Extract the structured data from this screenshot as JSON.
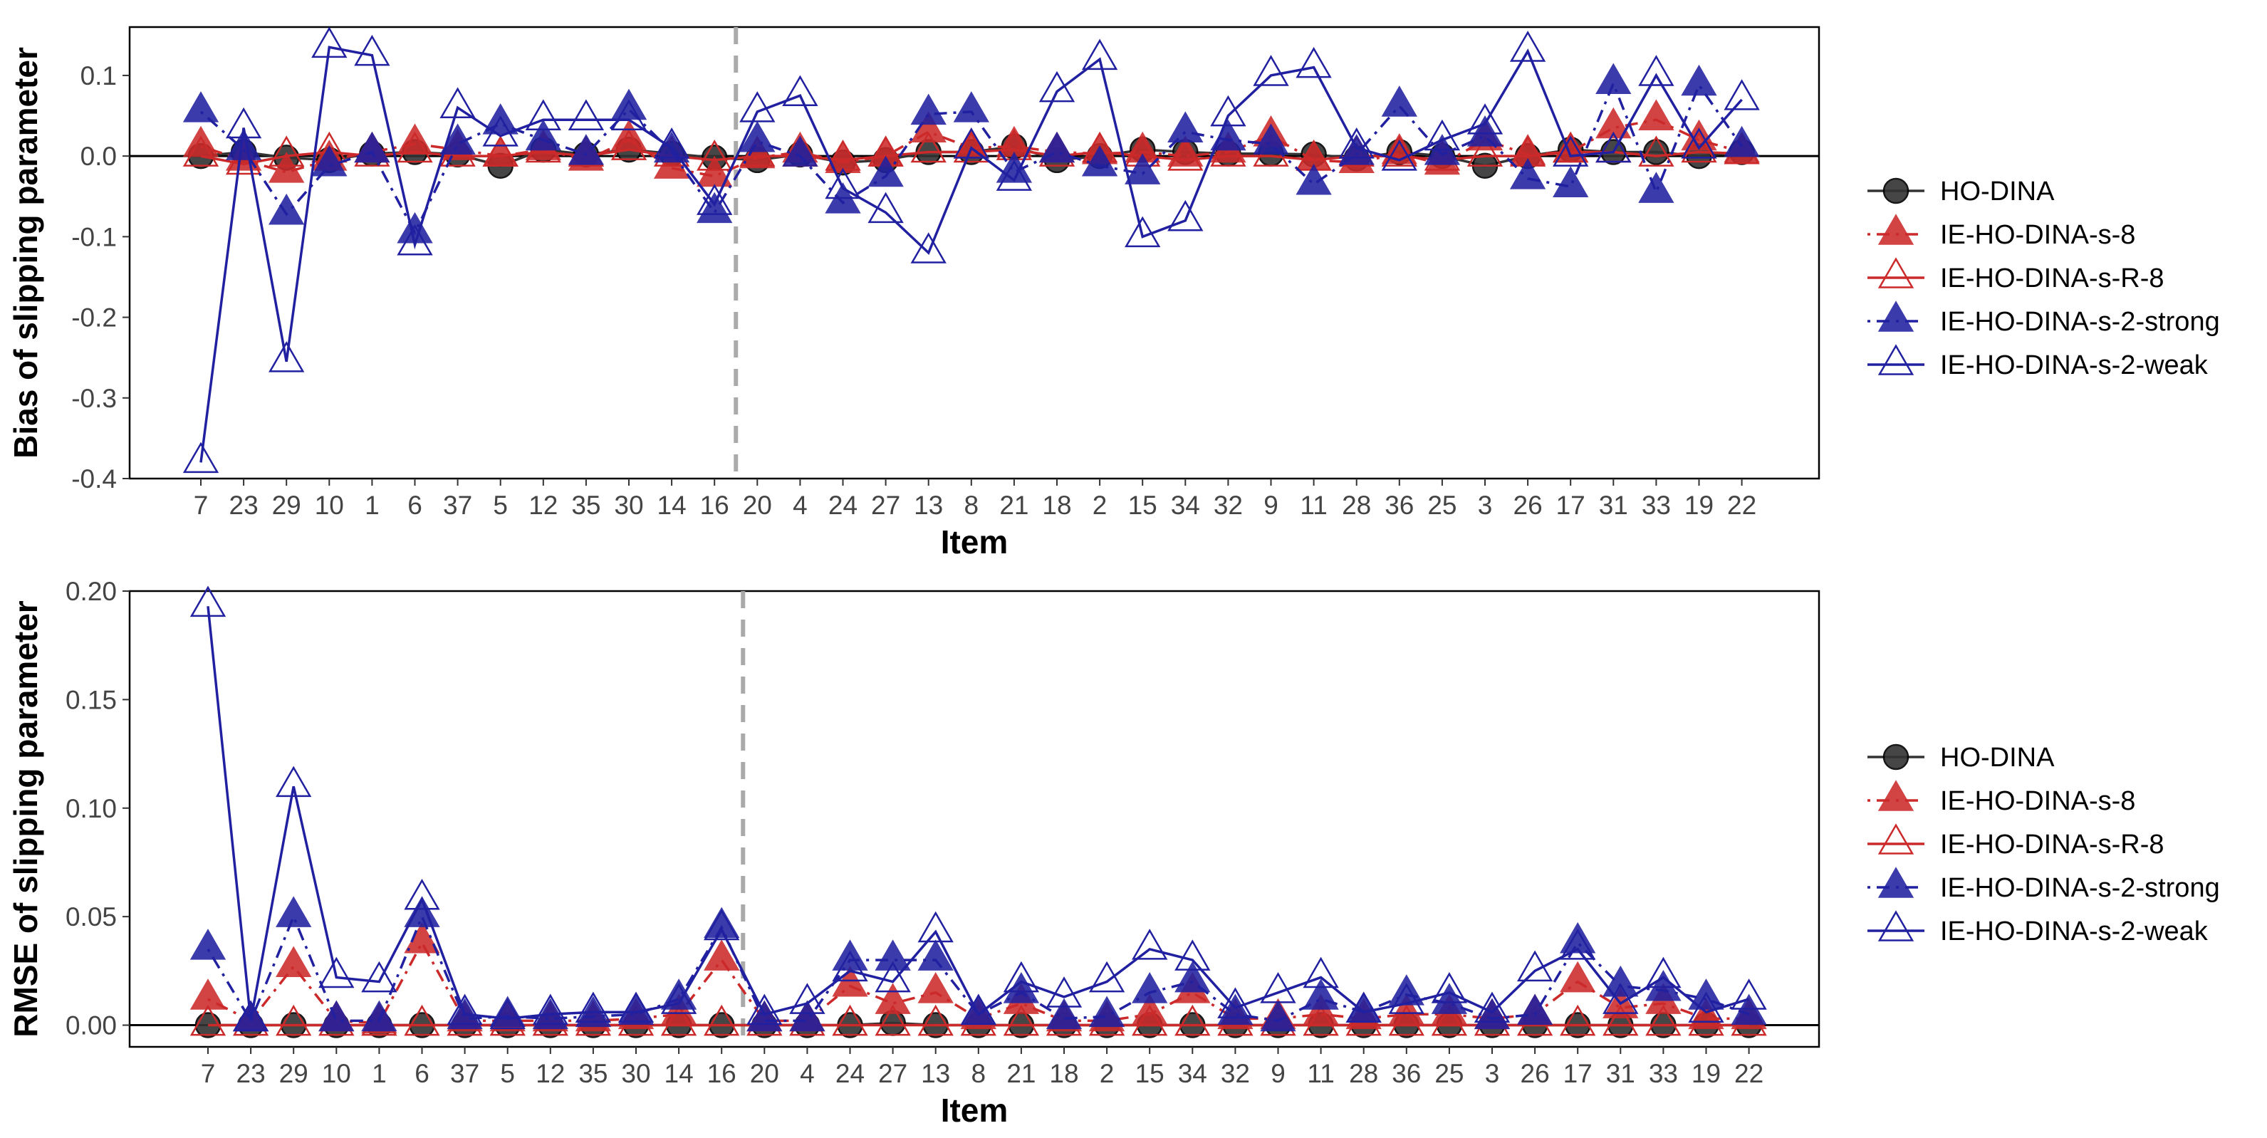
{
  "legend": [
    {
      "label": "HO-DINA",
      "color": "#333333",
      "shape": "circle",
      "fill": true,
      "dash": "solid"
    },
    {
      "label": "IE-HO-DINA-s-8",
      "color": "#CC2A2A",
      "shape": "triangle",
      "fill": true,
      "dash": "dotdash"
    },
    {
      "label": "IE-HO-DINA-s-R-8",
      "color": "#CC2A2A",
      "shape": "triangle",
      "fill": false,
      "dash": "solid"
    },
    {
      "label": "IE-HO-DINA-s-2-strong",
      "color": "#2020A0",
      "shape": "triangle",
      "fill": true,
      "dash": "dotdash"
    },
    {
      "label": "IE-HO-DINA-s-2-weak",
      "color": "#2020A0",
      "shape": "triangle",
      "fill": false,
      "dash": "solid"
    }
  ],
  "chart_data": [
    {
      "type": "line",
      "ylabel": "Bias of slipping parameter",
      "xlabel": "Item",
      "categories": [
        "7",
        "23",
        "29",
        "10",
        "1",
        "6",
        "37",
        "5",
        "12",
        "35",
        "30",
        "14",
        "16",
        "20",
        "4",
        "24",
        "27",
        "13",
        "8",
        "21",
        "18",
        "2",
        "15",
        "34",
        "32",
        "9",
        "11",
        "28",
        "36",
        "25",
        "3",
        "26",
        "17",
        "31",
        "33",
        "19",
        "22"
      ],
      "ylim": [
        -0.4,
        0.16
      ],
      "yticks": [
        0.1,
        0.0,
        -0.1,
        -0.2,
        -0.3,
        -0.4
      ],
      "ytick_labels": [
        "0.1",
        "0.0",
        "-0.1",
        "-0.2",
        "-0.3",
        "-0.4"
      ],
      "hline": 0,
      "vline_after_category": "16",
      "series": [
        {
          "name": "HO-DINA",
          "values": [
            0.0,
            0.005,
            -0.002,
            -0.005,
            0.003,
            0.005,
            0.002,
            -0.012,
            0.008,
            0.002,
            0.008,
            0.003,
            -0.002,
            -0.005,
            0.002,
            -0.008,
            -0.005,
            0.005,
            0.005,
            0.012,
            -0.005,
            0.0,
            0.008,
            0.005,
            0.003,
            0.003,
            0.002,
            -0.003,
            0.005,
            0.0,
            -0.012,
            0.0,
            0.008,
            0.005,
            0.005,
            0.0,
            0.005
          ]
        },
        {
          "name": "IE-HO-DINA-s-8",
          "values": [
            0.012,
            -0.005,
            -0.02,
            -0.005,
            0.005,
            0.015,
            0.008,
            0.0,
            0.008,
            -0.005,
            0.02,
            -0.015,
            -0.025,
            -0.002,
            0.005,
            -0.008,
            0.0,
            0.03,
            0.01,
            0.012,
            0.005,
            0.003,
            0.005,
            0.0,
            0.005,
            0.025,
            -0.005,
            -0.008,
            0.003,
            -0.01,
            0.02,
            0.002,
            0.005,
            0.035,
            0.045,
            0.02,
            0.005
          ]
        },
        {
          "name": "IE-HO-DINA-s-R-8",
          "values": [
            0.0,
            -0.01,
            0.0,
            0.005,
            0.0,
            0.005,
            0.0,
            0.0,
            0.005,
            0.0,
            0.008,
            0.0,
            -0.005,
            0.0,
            0.0,
            -0.005,
            0.0,
            0.005,
            0.005,
            0.008,
            0.0,
            0.005,
            0.0,
            -0.005,
            0.0,
            0.0,
            -0.005,
            0.0,
            0.0,
            -0.005,
            0.0,
            0.0,
            0.005,
            0.005,
            0.0,
            0.005,
            0.003
          ]
        },
        {
          "name": "IE-HO-DINA-s-2-strong",
          "values": [
            0.055,
            0.008,
            -0.072,
            -0.012,
            0.005,
            -0.095,
            0.015,
            0.04,
            0.02,
            0.002,
            0.058,
            0.005,
            -0.07,
            0.018,
            0.0,
            -0.058,
            -0.025,
            0.052,
            0.055,
            -0.02,
            0.005,
            -0.012,
            -0.022,
            0.03,
            0.02,
            0.015,
            -0.035,
            0.002,
            0.062,
            0.002,
            0.025,
            -0.028,
            -0.038,
            0.09,
            -0.045,
            0.088,
            0.012
          ]
        },
        {
          "name": "IE-HO-DINA-s-2-weak",
          "values": [
            -0.38,
            0.035,
            -0.255,
            0.135,
            0.125,
            -0.11,
            0.06,
            0.025,
            0.045,
            0.045,
            0.045,
            0.01,
            -0.06,
            0.055,
            0.075,
            -0.04,
            -0.07,
            -0.12,
            0.01,
            -0.03,
            0.08,
            0.12,
            -0.1,
            -0.08,
            0.05,
            0.1,
            0.11,
            0.01,
            -0.005,
            0.02,
            0.04,
            0.13,
            0.0,
            0.005,
            0.1,
            0.01,
            0.07
          ]
        }
      ]
    },
    {
      "type": "line",
      "ylabel": "RMSE of slipping parameter",
      "xlabel": "Item",
      "categories": [
        "7",
        "23",
        "29",
        "10",
        "1",
        "6",
        "37",
        "5",
        "12",
        "35",
        "30",
        "14",
        "16",
        "20",
        "4",
        "24",
        "27",
        "13",
        "8",
        "21",
        "18",
        "2",
        "15",
        "34",
        "32",
        "9",
        "11",
        "28",
        "36",
        "25",
        "3",
        "26",
        "17",
        "31",
        "33",
        "19",
        "22"
      ],
      "ylim": [
        -0.01,
        0.2
      ],
      "yticks": [
        0.2,
        0.15,
        0.1,
        0.05,
        0.0
      ],
      "ytick_labels": [
        "0.20",
        "0.15",
        "0.10",
        "0.05",
        "0.00"
      ],
      "hline": 0,
      "vline_after_category": "16",
      "series": [
        {
          "name": "HO-DINA",
          "values": [
            0.0,
            0.0,
            0.0,
            0.0,
            0.0,
            0.0,
            0.0,
            0.0,
            0.0,
            0.0,
            0.0,
            0.0,
            0.0,
            0.0,
            0.0,
            0.0,
            0.001,
            0.0,
            0.0,
            0.0,
            0.0,
            0.0,
            0.0,
            0.0,
            0.0,
            0.0,
            0.0,
            0.0,
            0.0,
            0.0,
            0.0,
            0.0,
            0.0,
            0.0,
            0.0,
            0.0,
            0.0
          ]
        },
        {
          "name": "IE-HO-DINA-s-8",
          "values": [
            0.012,
            0.002,
            0.027,
            0.002,
            0.001,
            0.038,
            0.002,
            0.002,
            0.002,
            0.002,
            0.003,
            0.005,
            0.03,
            0.002,
            0.002,
            0.018,
            0.01,
            0.015,
            0.003,
            0.01,
            0.002,
            0.002,
            0.005,
            0.015,
            0.003,
            0.003,
            0.005,
            0.003,
            0.005,
            0.005,
            0.003,
            0.005,
            0.02,
            0.008,
            0.01,
            0.003,
            0.003
          ]
        },
        {
          "name": "IE-HO-DINA-s-R-8",
          "values": [
            0.0,
            0.0,
            0.0,
            0.0,
            0.0,
            0.0,
            0.0,
            0.0,
            0.0,
            0.0,
            0.0,
            0.0,
            0.0,
            0.0,
            0.0,
            0.0,
            0.0,
            0.0,
            0.0,
            0.0,
            0.0,
            0.0,
            0.0,
            0.0,
            0.0,
            0.0,
            0.0,
            0.0,
            0.0,
            0.0,
            0.0,
            0.0,
            0.0,
            0.0,
            0.0,
            0.0,
            0.0
          ]
        },
        {
          "name": "IE-HO-DINA-s-2-strong",
          "values": [
            0.035,
            0.002,
            0.05,
            0.002,
            0.002,
            0.05,
            0.003,
            0.004,
            0.003,
            0.004,
            0.005,
            0.012,
            0.045,
            0.002,
            0.002,
            0.03,
            0.03,
            0.03,
            0.005,
            0.015,
            0.003,
            0.004,
            0.015,
            0.02,
            0.005,
            0.002,
            0.012,
            0.006,
            0.014,
            0.01,
            0.003,
            0.005,
            0.038,
            0.018,
            0.016,
            0.012,
            0.005
          ]
        },
        {
          "name": "IE-HO-DINA-s-2-weak",
          "values": [
            0.193,
            0.002,
            0.11,
            0.022,
            0.02,
            0.058,
            0.005,
            0.003,
            0.005,
            0.006,
            0.006,
            0.01,
            0.044,
            0.005,
            0.01,
            0.025,
            0.02,
            0.043,
            0.005,
            0.02,
            0.013,
            0.02,
            0.035,
            0.03,
            0.008,
            0.015,
            0.022,
            0.006,
            0.01,
            0.015,
            0.006,
            0.025,
            0.035,
            0.01,
            0.022,
            0.006,
            0.012
          ]
        }
      ]
    }
  ]
}
